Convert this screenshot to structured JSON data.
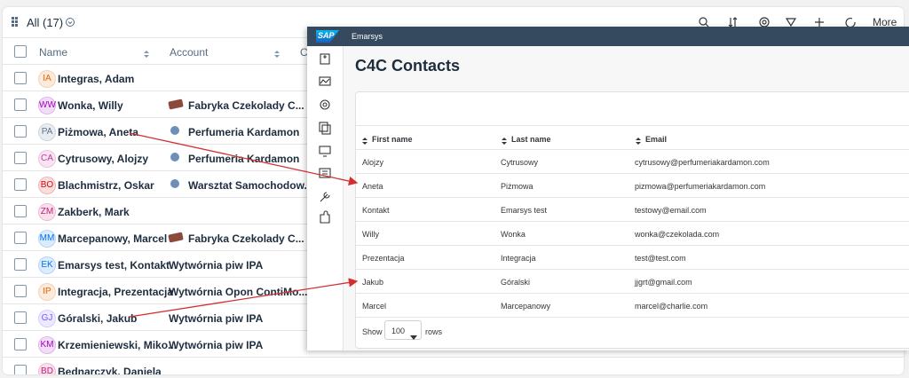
{
  "list": {
    "title": "All",
    "count": "(17)",
    "more": "More",
    "columns": [
      "Name",
      "Account",
      "C"
    ],
    "rows": [
      {
        "initials": "IA",
        "name": "Integras, Adam",
        "color": "#e76500"
      },
      {
        "initials": "WW",
        "name": "Wonka, Willy",
        "account": "Fabryka Czekolady C...",
        "icon": "chocolate",
        "color": "#a100c2"
      },
      {
        "initials": "PA",
        "name": "Piżmowa, Aneta",
        "account": "Perfumeria Kardamon",
        "icon": "globe",
        "color": "#5b738b"
      },
      {
        "initials": "CA",
        "name": "Cytrusowy, Alojzy",
        "account": "Perfumeria Kardamon",
        "icon": "globe",
        "color": "#c0399f"
      },
      {
        "initials": "BO",
        "name": "Blachmistrz, Oskar",
        "account": "Warsztat Samochodow...",
        "icon": "globe",
        "color": "#d20a0a"
      },
      {
        "initials": "ZM",
        "name": "Zakberk, Mark",
        "color": "#cc1a7a"
      },
      {
        "initials": "MM",
        "name": "Marcepanowy, Marcel",
        "account": "Fabryka Czekolady C...",
        "icon": "chocolate",
        "color": "#0070f2"
      },
      {
        "initials": "EK",
        "name": "Emarsys test, Kontakt",
        "account": "Wytwórnia piw IPA",
        "color": "#0070f2"
      },
      {
        "initials": "IP",
        "name": "Integracja, Prezentacja",
        "account": "Wytwórnia Opon ContiMo...",
        "color": "#e76500"
      },
      {
        "initials": "GJ",
        "name": "Góralski, Jakub",
        "account": "Wytwórnia piw IPA",
        "color": "#7858ff"
      },
      {
        "initials": "KM",
        "name": "Krzemieniewski, Miko...",
        "account": "Wytwórnia piw IPA",
        "color": "#a100c2"
      },
      {
        "initials": "BD",
        "name": "Bednarczyk, Daniela",
        "color": "#cc1a7a"
      }
    ]
  },
  "overlay": {
    "brand": "SAP",
    "app": "Emarsys",
    "title": "C4C Contacts",
    "columns": [
      "First name",
      "Last name",
      "Email"
    ],
    "rows": [
      [
        "Alojzy",
        "Cytrusowy",
        "cytrusowy@perfumeriakardamon.com"
      ],
      [
        "Aneta",
        "Piżmowa",
        "pizmowa@perfumeriakardamon.com"
      ],
      [
        "Kontakt",
        "Emarsys test",
        "testowy@email.com"
      ],
      [
        "Willy",
        "Wonka",
        "wonka@czekolada.com"
      ],
      [
        "Prezentacja",
        "Integracja",
        "test@test.com"
      ],
      [
        "Jakub",
        "Góralski",
        "jjgrt@gmail.com"
      ],
      [
        "Marcel",
        "Marcepanowy",
        "marcel@charlie.com"
      ]
    ],
    "footer": {
      "show": "Show",
      "page_size": "100",
      "rows": "rows"
    }
  }
}
